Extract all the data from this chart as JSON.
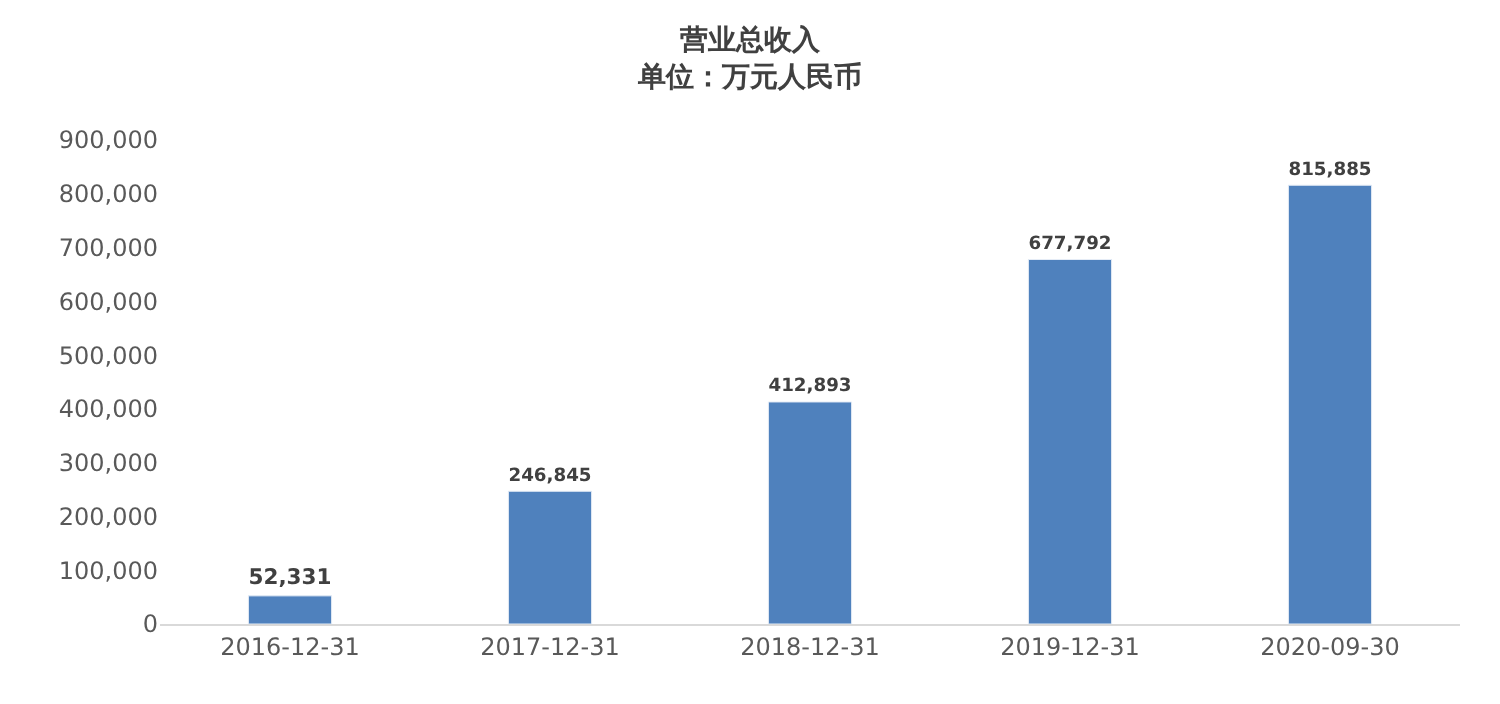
{
  "chart_data": {
    "type": "bar",
    "title": "营业总收入",
    "subtitle": "单位：万元人民币",
    "categories": [
      "2016-12-31",
      "2017-12-31",
      "2018-12-31",
      "2019-12-31",
      "2020-09-30"
    ],
    "values": [
      52331,
      246845,
      412893,
      677792,
      815885
    ],
    "value_labels": [
      "52,331",
      "246,845",
      "412,893",
      "677,792",
      "815,885"
    ],
    "color": "#4f81bd",
    "ylim": [
      0,
      900000
    ],
    "yticks": [
      0,
      {
        "value": 100000,
        "label": "100,000"
      },
      {
        "value": 200000,
        "label": "200,000"
      },
      {
        "value": 300000,
        "label": "300,000"
      },
      {
        "value": 400000,
        "label": "400,000"
      },
      {
        "value": 500000,
        "label": "500,000"
      },
      {
        "value": 600000,
        "label": "600,000"
      },
      {
        "value": 700000,
        "label": "700,000"
      },
      {
        "value": 800000,
        "label": "800,000"
      },
      {
        "value": 900000,
        "label": "900,000"
      }
    ],
    "legend": false
  }
}
